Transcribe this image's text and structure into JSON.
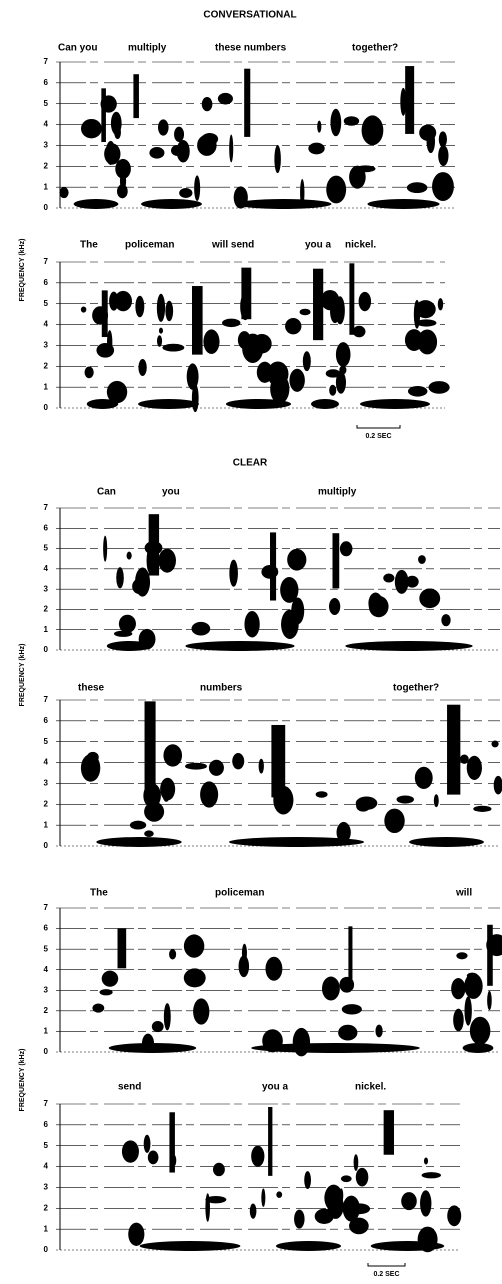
{
  "sections": [
    {
      "title": "CONVERSATIONAL",
      "groups": [
        {
          "axis_label": "FREQUENCY (kHz)",
          "scale": "0.2 SEC",
          "panels": [
            {
              "words": [
                "Can you",
                "multiply",
                "these numbers",
                "together?"
              ],
              "yticks": [
                0,
                1,
                2,
                3,
                4,
                5,
                6,
                7
              ]
            },
            {
              "words": [
                "The",
                "policeman",
                "will send",
                "you a",
                "nickel."
              ],
              "yticks": [
                0,
                1,
                2,
                3,
                4,
                5,
                6,
                7
              ]
            }
          ]
        }
      ]
    },
    {
      "title": "CLEAR",
      "groups": [
        {
          "axis_label": "FREQUENCY (kHz)",
          "panels": [
            {
              "words": [
                "Can",
                "you",
                "multiply"
              ],
              "yticks": [
                0,
                1,
                2,
                3,
                4,
                5,
                6,
                7
              ]
            },
            {
              "words": [
                "these",
                "numbers",
                "together?"
              ],
              "yticks": [
                0,
                1,
                2,
                3,
                4,
                5,
                6,
                7
              ]
            }
          ]
        },
        {
          "axis_label": "FREQUENCY (kHz)",
          "scale": "0.2 SEC",
          "panels": [
            {
              "words": [
                "The",
                "policeman",
                "will"
              ],
              "yticks": [
                0,
                1,
                2,
                3,
                4,
                5,
                6,
                7
              ]
            },
            {
              "words": [
                "send",
                "you a",
                "nickel."
              ],
              "yticks": [
                0,
                1,
                2,
                3,
                4,
                5,
                6,
                7
              ]
            }
          ]
        }
      ]
    }
  ]
}
